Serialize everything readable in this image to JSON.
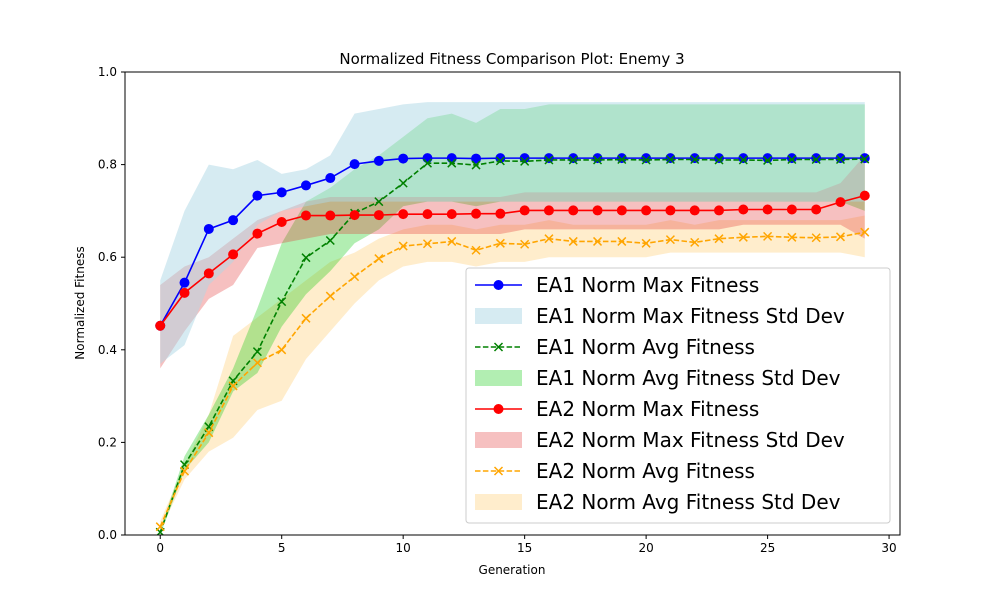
{
  "chart_data": {
    "type": "line",
    "title": "Normalized Fitness Comparison Plot: Enemy 3",
    "xlabel": "Generation",
    "ylabel": "Normalized Fitness",
    "xlim": [
      -1.45,
      30.45
    ],
    "ylim": [
      0,
      1
    ],
    "xticks": [
      0,
      5,
      10,
      15,
      20,
      25,
      30
    ],
    "yticks": [
      0.0,
      0.2,
      0.4,
      0.6,
      0.8,
      1.0
    ],
    "xtick_labels": [
      "0",
      "5",
      "10",
      "15",
      "20",
      "25",
      "30"
    ],
    "ytick_labels": [
      "0.0",
      "0.2",
      "0.4",
      "0.6",
      "0.8",
      "1.0"
    ],
    "grid": false,
    "legend_position": "lower-right",
    "x": [
      0,
      1,
      2,
      3,
      4,
      5,
      6,
      7,
      8,
      9,
      10,
      11,
      12,
      13,
      14,
      15,
      16,
      17,
      18,
      19,
      20,
      21,
      22,
      23,
      24,
      25,
      26,
      27,
      28,
      29
    ],
    "bands": [
      {
        "name": "EA2 Norm Avg Fitness Std Dev",
        "color": "#ffa500",
        "alpha": 0.2,
        "lower": [
          0.01,
          0.12,
          0.18,
          0.21,
          0.27,
          0.29,
          0.38,
          0.44,
          0.5,
          0.55,
          0.58,
          0.59,
          0.59,
          0.58,
          0.59,
          0.59,
          0.6,
          0.6,
          0.6,
          0.6,
          0.6,
          0.61,
          0.61,
          0.61,
          0.61,
          0.61,
          0.61,
          0.61,
          0.61,
          0.6
        ],
        "upper": [
          0.03,
          0.15,
          0.26,
          0.43,
          0.47,
          0.51,
          0.55,
          0.59,
          0.61,
          0.64,
          0.66,
          0.67,
          0.67,
          0.66,
          0.67,
          0.67,
          0.68,
          0.67,
          0.67,
          0.67,
          0.67,
          0.68,
          0.67,
          0.68,
          0.68,
          0.68,
          0.68,
          0.68,
          0.68,
          0.69
        ]
      },
      {
        "name": "EA1 Norm Avg Fitness Std Dev",
        "color": "#00c800",
        "alpha": 0.3,
        "lower": [
          0.0,
          0.14,
          0.2,
          0.31,
          0.35,
          0.45,
          0.52,
          0.57,
          0.63,
          0.66,
          0.71,
          0.72,
          0.72,
          0.71,
          0.72,
          0.72,
          0.72,
          0.72,
          0.72,
          0.72,
          0.72,
          0.72,
          0.72,
          0.72,
          0.72,
          0.72,
          0.72,
          0.72,
          0.72,
          0.7
        ],
        "upper": [
          0.01,
          0.17,
          0.26,
          0.36,
          0.49,
          0.63,
          0.72,
          0.75,
          0.79,
          0.82,
          0.86,
          0.9,
          0.91,
          0.89,
          0.92,
          0.92,
          0.93,
          0.93,
          0.93,
          0.93,
          0.93,
          0.93,
          0.93,
          0.93,
          0.93,
          0.93,
          0.93,
          0.93,
          0.93,
          0.93
        ]
      },
      {
        "name": "EA2 Norm Max Fitness Std Dev",
        "color": "#e03030",
        "alpha": 0.3,
        "lower": [
          0.36,
          0.44,
          0.51,
          0.54,
          0.62,
          0.63,
          0.64,
          0.65,
          0.65,
          0.65,
          0.65,
          0.65,
          0.65,
          0.65,
          0.65,
          0.66,
          0.66,
          0.66,
          0.66,
          0.66,
          0.66,
          0.66,
          0.66,
          0.66,
          0.67,
          0.67,
          0.67,
          0.67,
          0.67,
          0.64
        ],
        "upper": [
          0.54,
          0.58,
          0.6,
          0.64,
          0.68,
          0.7,
          0.72,
          0.73,
          0.73,
          0.73,
          0.73,
          0.73,
          0.73,
          0.73,
          0.73,
          0.74,
          0.74,
          0.74,
          0.74,
          0.74,
          0.74,
          0.74,
          0.74,
          0.74,
          0.74,
          0.74,
          0.74,
          0.74,
          0.76,
          0.82
        ]
      },
      {
        "name": "EA1 Norm Max Fitness Std Dev",
        "color": "#add8e6",
        "alpha": 0.5,
        "lower": [
          0.37,
          0.41,
          0.54,
          0.59,
          0.67,
          0.7,
          0.71,
          0.72,
          0.72,
          0.72,
          0.72,
          0.72,
          0.72,
          0.72,
          0.72,
          0.72,
          0.72,
          0.72,
          0.72,
          0.72,
          0.72,
          0.72,
          0.72,
          0.72,
          0.72,
          0.72,
          0.72,
          0.72,
          0.72,
          0.72
        ],
        "upper": [
          0.55,
          0.7,
          0.8,
          0.79,
          0.81,
          0.78,
          0.79,
          0.82,
          0.91,
          0.92,
          0.93,
          0.935,
          0.935,
          0.935,
          0.935,
          0.935,
          0.935,
          0.935,
          0.935,
          0.935,
          0.935,
          0.935,
          0.935,
          0.935,
          0.935,
          0.935,
          0.935,
          0.935,
          0.935,
          0.935
        ]
      }
    ],
    "series": [
      {
        "name": "EA1 Norm Max Fitness",
        "color": "#0000ff",
        "style": "solid",
        "marker": "circle",
        "values": [
          0.452,
          0.545,
          0.661,
          0.68,
          0.733,
          0.74,
          0.755,
          0.771,
          0.801,
          0.808,
          0.813,
          0.814,
          0.814,
          0.813,
          0.814,
          0.814,
          0.814,
          0.814,
          0.814,
          0.814,
          0.814,
          0.814,
          0.814,
          0.814,
          0.814,
          0.814,
          0.814,
          0.814,
          0.814,
          0.814
        ]
      },
      {
        "name": "EA1 Norm Avg Fitness",
        "color": "#008000",
        "style": "dashed",
        "marker": "x",
        "values": [
          0.006,
          0.152,
          0.234,
          0.333,
          0.396,
          0.504,
          0.599,
          0.636,
          0.695,
          0.72,
          0.76,
          0.803,
          0.803,
          0.799,
          0.808,
          0.807,
          0.81,
          0.81,
          0.81,
          0.811,
          0.81,
          0.811,
          0.811,
          0.81,
          0.81,
          0.809,
          0.811,
          0.811,
          0.811,
          0.812
        ]
      },
      {
        "name": "EA2 Norm Max Fitness",
        "color": "#ff0000",
        "style": "solid",
        "marker": "circle",
        "values": [
          0.452,
          0.523,
          0.565,
          0.606,
          0.651,
          0.676,
          0.69,
          0.69,
          0.691,
          0.691,
          0.693,
          0.693,
          0.693,
          0.694,
          0.694,
          0.701,
          0.701,
          0.701,
          0.701,
          0.701,
          0.701,
          0.701,
          0.701,
          0.701,
          0.703,
          0.703,
          0.703,
          0.703,
          0.719,
          0.733
        ]
      },
      {
        "name": "EA2 Norm Avg Fitness",
        "color": "#ffa500",
        "style": "dashed",
        "marker": "x",
        "values": [
          0.018,
          0.138,
          0.221,
          0.322,
          0.372,
          0.4,
          0.468,
          0.516,
          0.558,
          0.597,
          0.624,
          0.629,
          0.634,
          0.615,
          0.63,
          0.628,
          0.64,
          0.634,
          0.634,
          0.634,
          0.63,
          0.638,
          0.632,
          0.64,
          0.643,
          0.645,
          0.643,
          0.642,
          0.644,
          0.654
        ]
      }
    ],
    "legend": [
      {
        "label": "EA1 Norm Max Fitness",
        "kind": "line",
        "color": "#0000ff",
        "style": "solid",
        "marker": "circle"
      },
      {
        "label": "EA1 Norm Max Fitness Std Dev",
        "kind": "patch",
        "color": "#add8e6",
        "alpha": 0.5
      },
      {
        "label": "EA1 Norm Avg Fitness",
        "kind": "line",
        "color": "#008000",
        "style": "dashed",
        "marker": "x"
      },
      {
        "label": "EA1 Norm Avg Fitness Std Dev",
        "kind": "patch",
        "color": "#00c800",
        "alpha": 0.3
      },
      {
        "label": "EA2 Norm Max Fitness",
        "kind": "line",
        "color": "#ff0000",
        "style": "solid",
        "marker": "circle"
      },
      {
        "label": "EA2 Norm Max Fitness Std Dev",
        "kind": "patch",
        "color": "#e03030",
        "alpha": 0.3
      },
      {
        "label": "EA2 Norm Avg Fitness",
        "kind": "line",
        "color": "#ffa500",
        "style": "dashed",
        "marker": "x"
      },
      {
        "label": "EA2 Norm Avg Fitness Std Dev",
        "kind": "patch",
        "color": "#ffa500",
        "alpha": 0.2
      }
    ]
  }
}
